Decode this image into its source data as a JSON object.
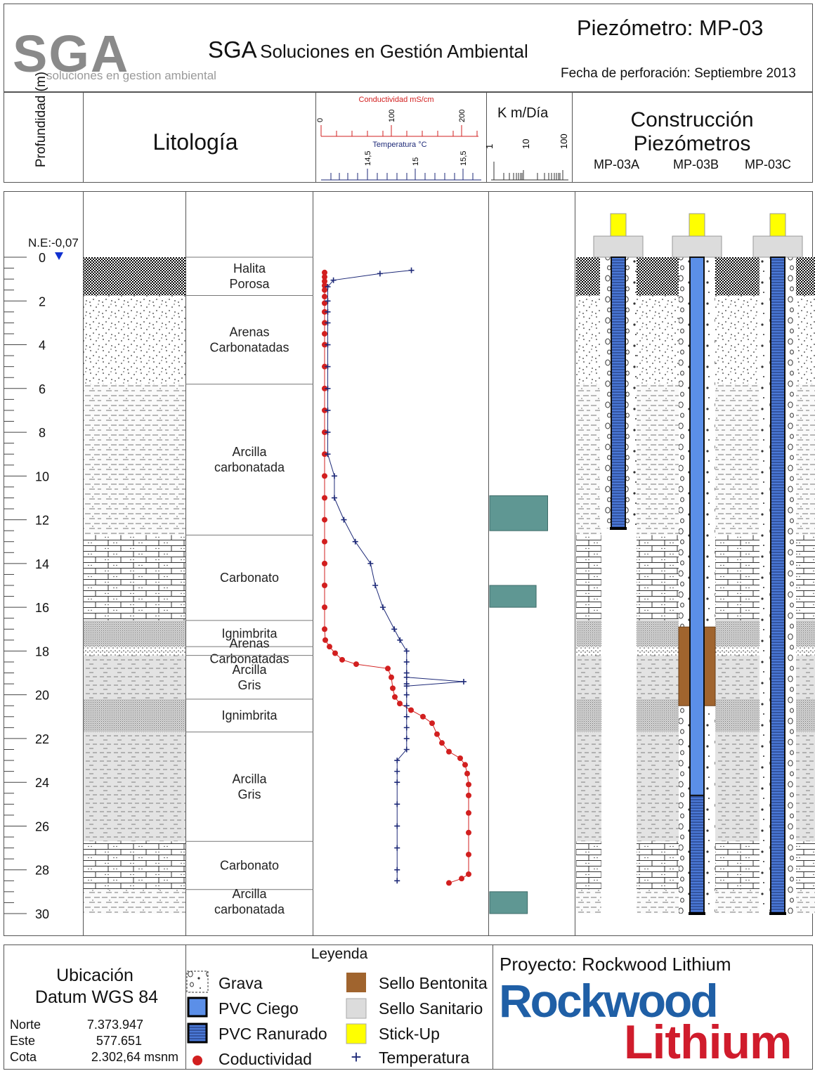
{
  "header": {
    "logo_letters": "SGA",
    "logo_tagline": "soluciones en gestion ambiental",
    "company_acronym": "SGA",
    "company_name": "Soluciones en Gestión Ambiental",
    "well_title": "Piezómetro: MP-03",
    "drill_date": "Fecha de perforación: Septiembre 2013"
  },
  "columns": {
    "depth_label": "Profundidad (m)",
    "lithology_label": "Litología",
    "conductivity_label": "Conductividad mS/cm",
    "conductivity_ticks": [
      "0",
      "100",
      "200"
    ],
    "temperature_label": "Temperatura °C",
    "temperature_ticks": [
      "14,5",
      "15",
      "15,5"
    ],
    "k_label": "K m/Día",
    "k_ticks": [
      "1",
      "10",
      "100"
    ],
    "construction_label": "Construcción Piezómetros",
    "wells": [
      "MP-03A",
      "MP-03B",
      "MP-03C"
    ]
  },
  "water_level": "N.E:-0,07",
  "depth_ticks": [
    "0",
    "2",
    "4",
    "6",
    "8",
    "10",
    "12",
    "14",
    "16",
    "18",
    "20",
    "22",
    "24",
    "26",
    "28",
    "30"
  ],
  "layers": [
    {
      "name": "Halita Porosa",
      "top": 0,
      "bottom": 1.75,
      "pattern": "halita"
    },
    {
      "name": "Arenas Carbonatadas",
      "top": 1.75,
      "bottom": 5.8,
      "pattern": "arena"
    },
    {
      "name": "Arcilla carbonatada",
      "top": 5.8,
      "bottom": 12.7,
      "pattern": "arcilla_carb"
    },
    {
      "name": "Carbonato",
      "top": 12.7,
      "bottom": 16.6,
      "pattern": "carbonato"
    },
    {
      "name": "Ignimbrita",
      "top": 16.6,
      "bottom": 17.8,
      "pattern": "ignimbrita"
    },
    {
      "name": "Arenas Carbonatadas",
      "top": 17.8,
      "bottom": 18.2,
      "pattern": "arena_fina"
    },
    {
      "name": "Arcilla Gris",
      "top": 18.2,
      "bottom": 20.2,
      "pattern": "arcilla_gris"
    },
    {
      "name": "Ignimbrita",
      "top": 20.2,
      "bottom": 21.7,
      "pattern": "ignimbrita"
    },
    {
      "name": "Arcilla Gris",
      "top": 21.7,
      "bottom": 26.7,
      "pattern": "arcilla_gris"
    },
    {
      "name": "Carbonato",
      "top": 26.7,
      "bottom": 28.9,
      "pattern": "carbonato"
    },
    {
      "name": "Arcilla carbonatada",
      "top": 28.9,
      "bottom": 30,
      "pattern": "arcilla_carb"
    }
  ],
  "chart_data": {
    "type": "line",
    "y_label": "Profundidad (m)",
    "y_range": [
      0,
      30
    ],
    "series": [
      {
        "name": "Coductividad",
        "x_axis": "Conductividad mS/cm",
        "x_range": [
          0,
          230
        ],
        "color": "#d21f1f",
        "points": [
          [
            5,
            0.7
          ],
          [
            5,
            0.9
          ],
          [
            5,
            1.1
          ],
          [
            5,
            1.3
          ],
          [
            5,
            1.5
          ],
          [
            5,
            1.8
          ],
          [
            5,
            2.1
          ],
          [
            5,
            2.5
          ],
          [
            5,
            3
          ],
          [
            5,
            3.5
          ],
          [
            5,
            4
          ],
          [
            5,
            5
          ],
          [
            5,
            6
          ],
          [
            5,
            7
          ],
          [
            5,
            8
          ],
          [
            5,
            9
          ],
          [
            5,
            10
          ],
          [
            5,
            11
          ],
          [
            5,
            12
          ],
          [
            5,
            13
          ],
          [
            5,
            14
          ],
          [
            5,
            15
          ],
          [
            5,
            16
          ],
          [
            5,
            17
          ],
          [
            6,
            17.5
          ],
          [
            12,
            17.8
          ],
          [
            20,
            18.1
          ],
          [
            30,
            18.4
          ],
          [
            50,
            18.6
          ],
          [
            95,
            18.8
          ],
          [
            100,
            19.2
          ],
          [
            102,
            19.7
          ],
          [
            105,
            20.1
          ],
          [
            112,
            20.4
          ],
          [
            128,
            20.7
          ],
          [
            145,
            21
          ],
          [
            158,
            21.3
          ],
          [
            165,
            21.8
          ],
          [
            172,
            22.2
          ],
          [
            182,
            22.6
          ],
          [
            198,
            22.9
          ],
          [
            205,
            23.2
          ],
          [
            208,
            23.6
          ],
          [
            210,
            24.1
          ],
          [
            210,
            24.6
          ],
          [
            210,
            25.4
          ],
          [
            210,
            26.3
          ],
          [
            210,
            27.3
          ],
          [
            210,
            28.2
          ],
          [
            200,
            28.4
          ],
          [
            182,
            28.6
          ]
        ]
      },
      {
        "name": "Temperatura",
        "x_axis": "Temperatura °C",
        "x_range": [
          14.1,
          15.8
        ],
        "color": "#1e2a78",
        "points": [
          [
            15.05,
            0.6
          ],
          [
            14.72,
            0.75
          ],
          [
            14.23,
            1.05
          ],
          [
            14.17,
            1.35
          ],
          [
            14.17,
            2
          ],
          [
            14.17,
            2.5
          ],
          [
            14.17,
            3
          ],
          [
            14.17,
            4
          ],
          [
            14.17,
            5
          ],
          [
            14.17,
            6
          ],
          [
            14.17,
            7
          ],
          [
            14.17,
            8
          ],
          [
            14.17,
            9
          ],
          [
            14.24,
            10
          ],
          [
            14.24,
            11
          ],
          [
            14.34,
            12
          ],
          [
            14.46,
            13
          ],
          [
            14.62,
            14
          ],
          [
            14.67,
            15
          ],
          [
            14.75,
            16
          ],
          [
            14.87,
            17
          ],
          [
            14.93,
            17.5
          ],
          [
            15.0,
            18
          ],
          [
            15.0,
            18.5
          ],
          [
            15.0,
            19
          ],
          [
            15.0,
            19.5
          ],
          [
            15.0,
            20
          ],
          [
            15.0,
            20.5
          ],
          [
            15.0,
            21
          ],
          [
            15.0,
            21.5
          ],
          [
            15.0,
            22
          ],
          [
            15.0,
            22.5
          ],
          [
            14.9,
            23
          ],
          [
            14.9,
            23.5
          ],
          [
            14.9,
            24
          ],
          [
            14.9,
            25
          ],
          [
            14.9,
            26
          ],
          [
            14.9,
            27
          ],
          [
            14.9,
            28
          ],
          [
            14.9,
            28.5
          ]
        ]
      },
      {
        "name": "Temperatura (dispersión)",
        "x_axis": "Temperatura °C",
        "x_range": [
          14.1,
          15.8
        ],
        "color": "#1e2a78",
        "points": [
          [
            15.0,
            19.2
          ],
          [
            15.6,
            19.4
          ],
          [
            15.0,
            19.6
          ]
        ]
      }
    ],
    "k_bars": [
      {
        "top": 10.9,
        "bottom": 12.5,
        "value": 100
      },
      {
        "top": 15.0,
        "bottom": 16.0,
        "value": 40
      },
      {
        "top": 29.0,
        "bottom": 30.0,
        "value": 20
      }
    ]
  },
  "wells_construction": [
    {
      "name": "MP-03A",
      "blind_to": 0,
      "screen_from": 0,
      "screen_to": 12.4,
      "bentonite": null
    },
    {
      "name": "MP-03B",
      "blind_to": 24.6,
      "screen_from": 24.6,
      "screen_to": 30,
      "bentonite": [
        16.9,
        20.5
      ]
    },
    {
      "name": "MP-03C",
      "blind_to": 0,
      "screen_from": 0,
      "screen_to": 30,
      "bentonite": null
    }
  ],
  "location": {
    "title": "Ubicación",
    "datum": "Datum WGS 84",
    "rows": [
      {
        "label": "Norte",
        "value": "7.373.947"
      },
      {
        "label": "Este",
        "value": "577.651"
      },
      {
        "label": "Cota",
        "value": "2.302,64 msnm"
      }
    ]
  },
  "legend": {
    "title": "Leyenda",
    "items": [
      {
        "label": "Grava",
        "symbol": "grava"
      },
      {
        "label": "Sello Bentonita",
        "symbol": "bentonita",
        "color": "#a0642e"
      },
      {
        "label": "PVC Ciego",
        "symbol": "pvc_ciego",
        "color": "#5b8fe8"
      },
      {
        "label": "Sello Sanitario",
        "symbol": "sanitario",
        "color": "#dcdcdc"
      },
      {
        "label": "PVC Ranurado",
        "symbol": "pvc_ranurado",
        "color": "#4a78d6"
      },
      {
        "label": "Stick-Up",
        "symbol": "stickup",
        "color": "#ffff00"
      },
      {
        "label": "Coductividad",
        "symbol": "dot",
        "color": "#d21f1f"
      },
      {
        "label": "Temperatura",
        "symbol": "plus",
        "color": "#1e2a78"
      }
    ]
  },
  "project": {
    "label": "Proyecto: Rockwood Lithium",
    "logo_word1": "Rockwood",
    "logo_word2": "Lithium",
    "color1": "#1f5fa6",
    "color2": "#d01c2c"
  },
  "colors": {
    "k_bar": "#5f9793",
    "frame": "#555555"
  }
}
